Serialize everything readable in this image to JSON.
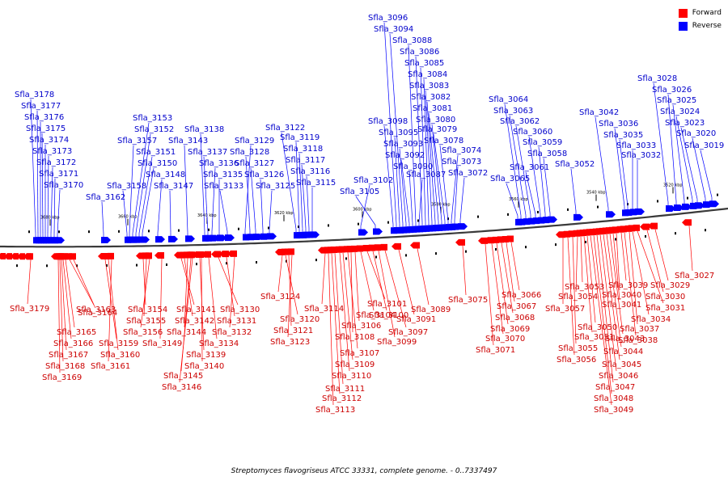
{
  "caption": "Streptomyces flavogriseus ATCC 33331, complete genome. - 0..7337497",
  "legend": [
    {
      "label": "Forward",
      "color": "#ff0000"
    },
    {
      "label": "Reverse",
      "color": "#0000ff"
    }
  ],
  "colors": {
    "forward": "#ff0000",
    "forward_label": "#cc0000",
    "reverse": "#0000ff",
    "reverse_label": "#0000cc",
    "backbone": "#888888"
  },
  "ticks": [
    "3680 kbp",
    "3660 kbp",
    "3640 kbp",
    "3620 kbp",
    "3600 kbp",
    "3580 kbp",
    "3560 kbp",
    "3540 kbp",
    "3520 kbp"
  ],
  "reverse_genes": [
    "Sfla_3178",
    "Sfla_3177",
    "Sfla_3176",
    "Sfla_3175",
    "Sfla_3174",
    "Sfla_3173",
    "Sfla_3172",
    "Sfla_3171",
    "Sfla_3170",
    "Sfla_3162",
    "Sfla_3158",
    "Sfla_3157",
    "Sfla_3153",
    "Sfla_3152",
    "Sfla_3151",
    "Sfla_3150",
    "Sfla_3148",
    "Sfla_3147",
    "Sfla_3143",
    "Sfla_3138",
    "Sfla_3137",
    "Sfla_3136",
    "Sfla_3135",
    "Sfla_3133",
    "Sfla_3129",
    "Sfla_3128",
    "Sfla_3127",
    "Sfla_3126",
    "Sfla_3125",
    "Sfla_3122",
    "Sfla_3119",
    "Sfla_3118",
    "Sfla_3117",
    "Sfla_3116",
    "Sfla_3115",
    "Sfla_3105",
    "Sfla_3102",
    "Sfla_3098",
    "Sfla_3096",
    "Sfla_3095",
    "Sfla_3094",
    "Sfla_3093",
    "Sfla_3092",
    "Sfla_3090",
    "Sfla_3088",
    "Sfla_3087",
    "Sfla_3086",
    "Sfla_3085",
    "Sfla_3084",
    "Sfla_3083",
    "Sfla_3082",
    "Sfla_3081",
    "Sfla_3080",
    "Sfla_3079",
    "Sfla_3078",
    "Sfla_3074",
    "Sfla_3073",
    "Sfla_3072",
    "Sfla_3065",
    "Sfla_3064",
    "Sfla_3063",
    "Sfla_3062",
    "Sfla_3061",
    "Sfla_3060",
    "Sfla_3059",
    "Sfla_3058",
    "Sfla_3052",
    "Sfla_3042",
    "Sfla_3036",
    "Sfla_3035",
    "Sfla_3033",
    "Sfla_3032",
    "Sfla_3028",
    "Sfla_3026",
    "Sfla_3025",
    "Sfla_3024",
    "Sfla_3023",
    "Sfla_3020",
    "Sfla_3019"
  ],
  "forward_genes": [
    "Sfla_3179",
    "Sfla_3164",
    "Sfla_3163",
    "Sfla_3165",
    "Sfla_3166",
    "Sfla_3167",
    "Sfla_3168",
    "Sfla_3169",
    "Sfla_3159",
    "Sfla_3160",
    "Sfla_3161",
    "Sfla_3154",
    "Sfla_3155",
    "Sfla_3156",
    "Sfla_3149",
    "Sfla_3141",
    "Sfla_3142",
    "Sfla_3144",
    "Sfla_3145",
    "Sfla_3146",
    "Sfla_3139",
    "Sfla_3140",
    "Sfla_3134",
    "Sfla_3130",
    "Sfla_3131",
    "Sfla_3132",
    "Sfla_3124",
    "Sfla_3120",
    "Sfla_3121",
    "Sfla_3123",
    "Sfla_3114",
    "Sfla_3113",
    "Sfla_3112",
    "Sfla_3111",
    "Sfla_3110",
    "Sfla_3109",
    "Sfla_3107",
    "Sfla_3108",
    "Sfla_3106",
    "Sfla_3104",
    "Sfla_3101",
    "Sfla_3100",
    "Sfla_3099",
    "Sfla_3097",
    "Sfla_3091",
    "Sfla_3089",
    "Sfla_3075",
    "Sfla_3071",
    "Sfla_3070",
    "Sfla_3069",
    "Sfla_3068",
    "Sfla_3067",
    "Sfla_3066",
    "Sfla_3057",
    "Sfla_3056",
    "Sfla_3055",
    "Sfla_3054",
    "Sfla_3053",
    "Sfla_3051",
    "Sfla_3050",
    "Sfla_3049",
    "Sfla_3048",
    "Sfla_3047",
    "Sfla_3046",
    "Sfla_3045",
    "Sfla_3044",
    "Sfla_3043",
    "Sfla_3041",
    "Sfla_3040",
    "Sfla_3039",
    "Sfla_3038",
    "Sfla_3037",
    "Sfla_3034",
    "Sfla_3031",
    "Sfla_3030",
    "Sfla_3029",
    "Sfla_3027"
  ]
}
